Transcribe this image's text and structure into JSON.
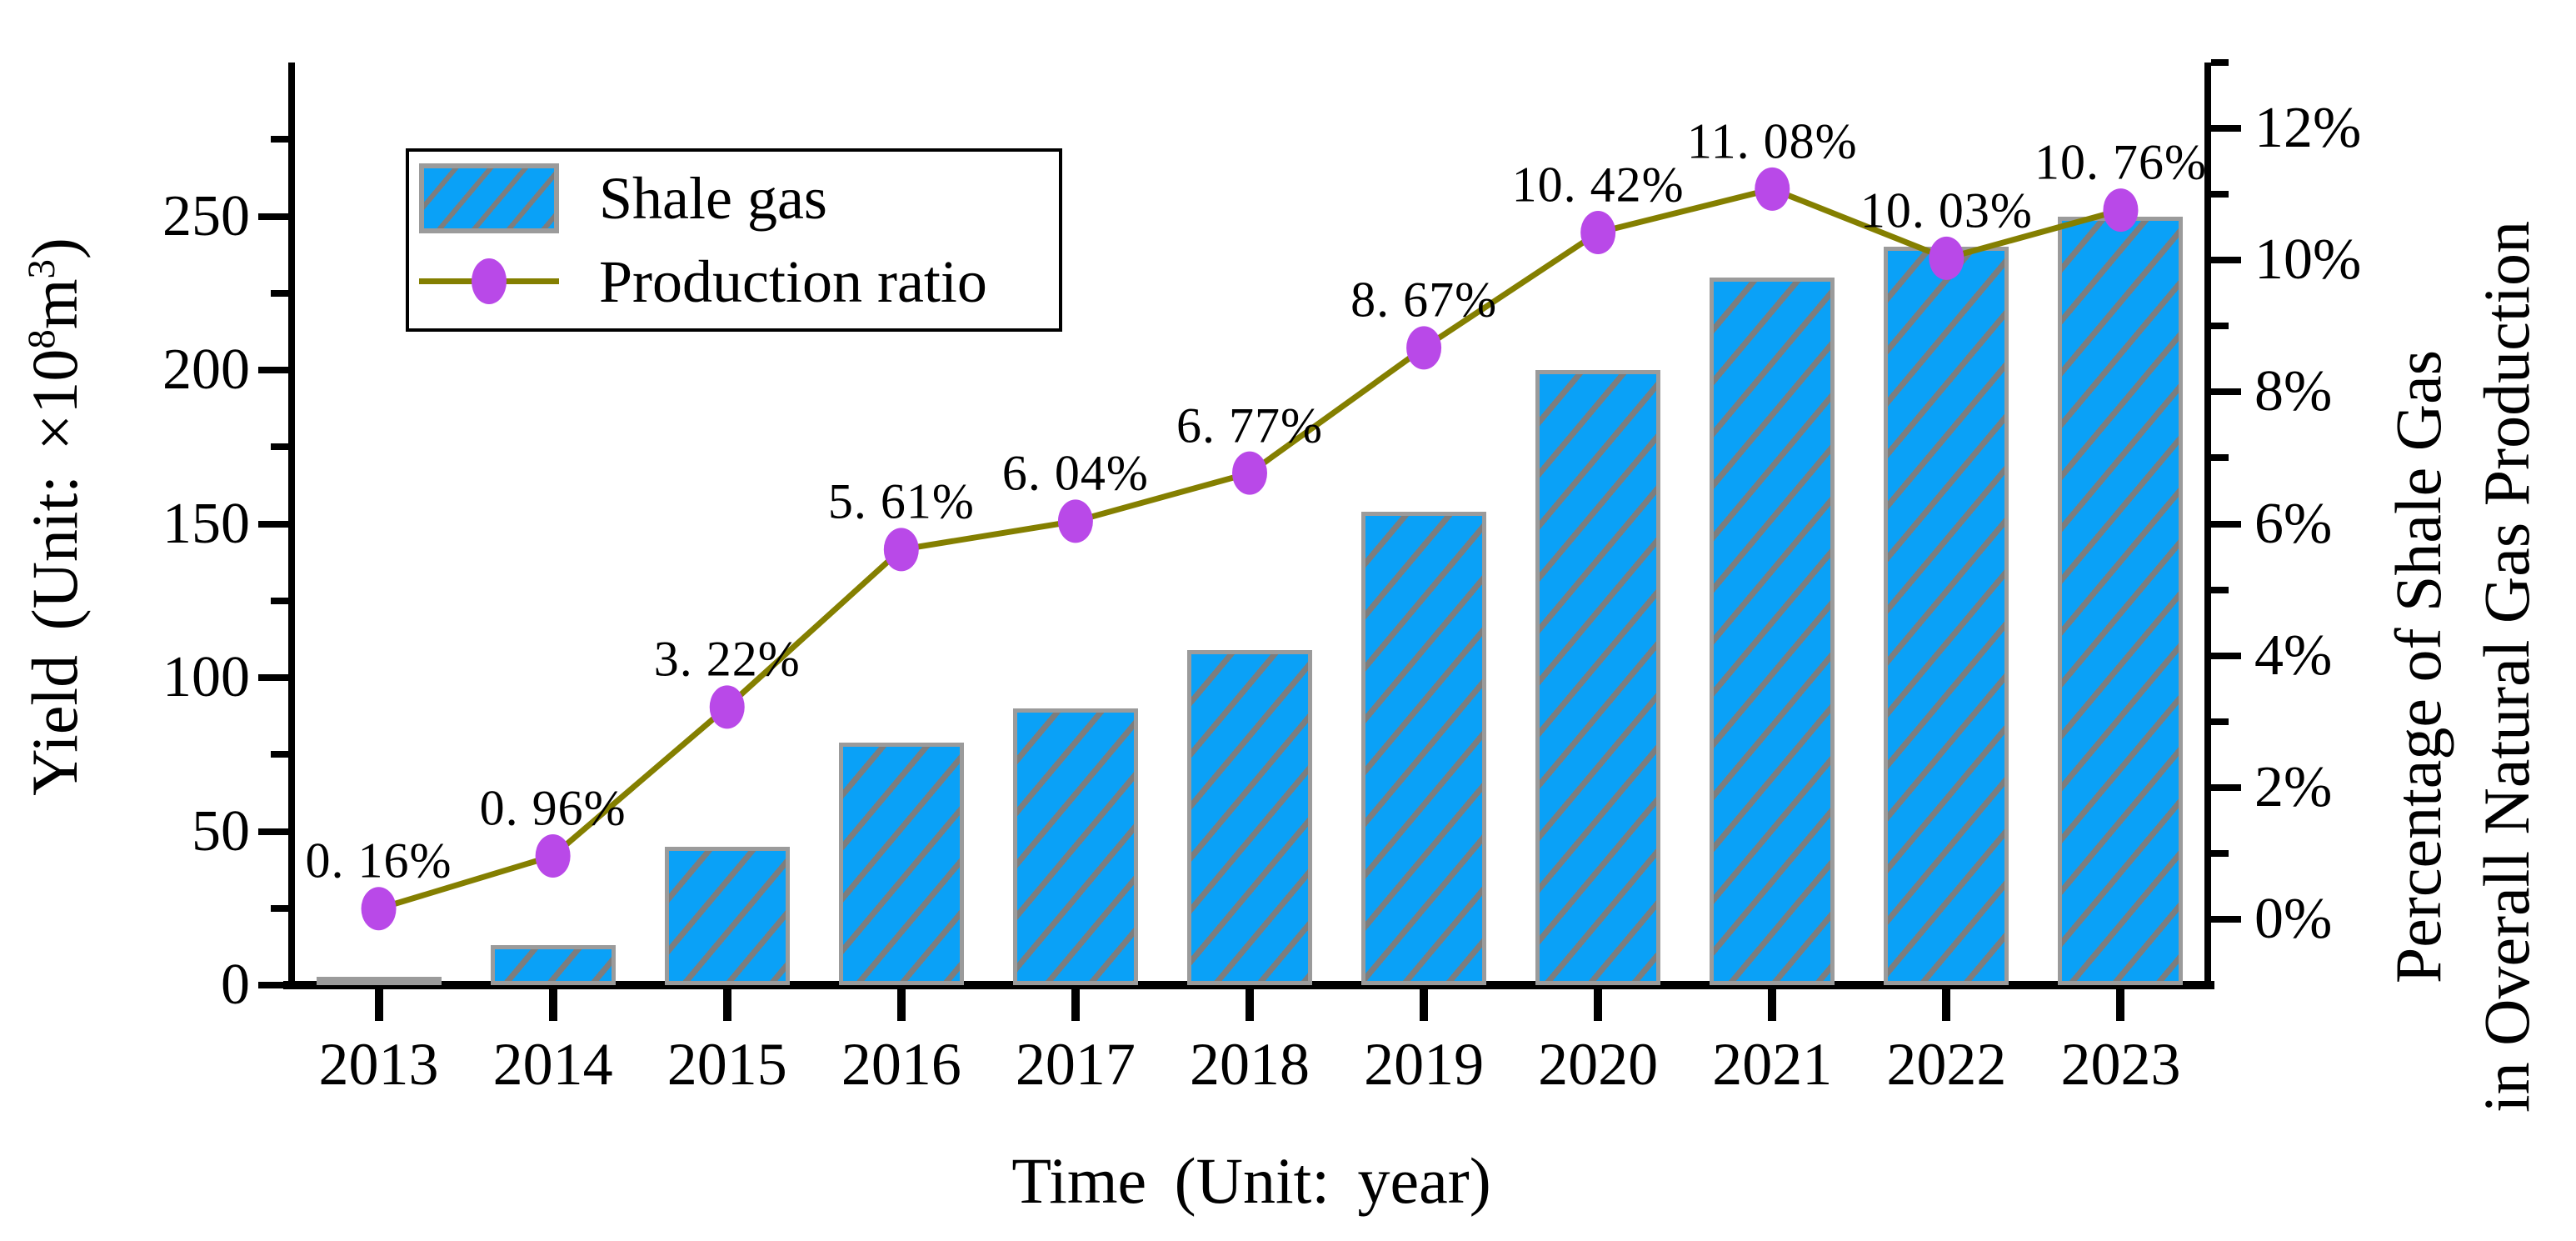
{
  "colors": {
    "bar_fill": "#0aa1f7",
    "bar_edge": "#9b9b9b",
    "bar_hatch": "#7d7d7d",
    "line": "#847f00",
    "marker": "#b949e8",
    "axis": "#000000",
    "background": "#ffffff"
  },
  "legend": {
    "items": [
      {
        "label": "Shale gas",
        "swatch": "hatched-blue-rectangle"
      },
      {
        "label": "Production ratio",
        "swatch": "olive-line-with-magenta-dot"
      }
    ]
  },
  "left_axis": {
    "title_parts": {
      "t1": "Yield (Unit: ×10",
      "sup1": "8",
      "t2": "m",
      "sup2": "3",
      "t3": ")"
    },
    "ticks": [
      {
        "v": 0,
        "label": "0"
      },
      {
        "v": 50,
        "label": "50"
      },
      {
        "v": 100,
        "label": "100"
      },
      {
        "v": 150,
        "label": "150"
      },
      {
        "v": 200,
        "label": "200"
      },
      {
        "v": 250,
        "label": "250"
      }
    ],
    "minor": [
      25,
      75,
      125,
      175,
      225,
      275
    ],
    "max": 300
  },
  "right_axis": {
    "title_lines": [
      "Percentage of Shale Gas",
      "in Overall Natural Gas Production"
    ],
    "ticks": [
      {
        "v": 0,
        "label": "0%"
      },
      {
        "v": 2,
        "label": "2%"
      },
      {
        "v": 4,
        "label": "4%"
      },
      {
        "v": 6,
        "label": "6%"
      },
      {
        "v": 8,
        "label": "8%"
      },
      {
        "v": 10,
        "label": "10%"
      },
      {
        "v": 12,
        "label": "12%"
      }
    ],
    "minor": [
      1,
      3,
      5,
      7,
      9,
      11,
      13
    ],
    "min": -1,
    "max": 13
  },
  "x_axis": {
    "title": "Time (Unit: year)",
    "categories": [
      "2013",
      "2014",
      "2015",
      "2016",
      "2017",
      "2018",
      "2019",
      "2020",
      "2021",
      "2022",
      "2023"
    ]
  },
  "chart_data": {
    "type": "bar",
    "subtype": "bar+line dual-axis combo",
    "categories": [
      "2013",
      "2014",
      "2015",
      "2016",
      "2017",
      "2018",
      "2019",
      "2020",
      "2021",
      "2022",
      "2023"
    ],
    "series": [
      {
        "name": "Shale gas",
        "type": "bar",
        "axis": "left",
        "values": [
          2,
          13,
          45,
          79,
          90,
          109,
          154,
          200,
          230,
          240,
          250
        ]
      },
      {
        "name": "Production ratio",
        "type": "line",
        "axis": "right",
        "values": [
          0.16,
          0.96,
          3.22,
          5.61,
          6.04,
          6.77,
          8.67,
          10.42,
          11.08,
          10.03,
          10.76
        ],
        "point_labels": [
          "0. 16%",
          "0. 96%",
          "3. 22%",
          "5. 61%",
          "6. 04%",
          "6. 77%",
          "8. 67%",
          "10. 42%",
          "11. 08%",
          "10. 03%",
          "10. 76%"
        ]
      }
    ],
    "title": "",
    "xlabel": "Time (Unit: year)",
    "ylabel_left": "Yield (Unit: ×10^8 m^3)",
    "ylabel_right": "Percentage of Shale Gas in Overall Natural Gas Production",
    "ylim_left": [
      0,
      300
    ],
    "ylim_right": [
      -1,
      13
    ],
    "grid": false,
    "legend_position": "upper-left-inside"
  }
}
